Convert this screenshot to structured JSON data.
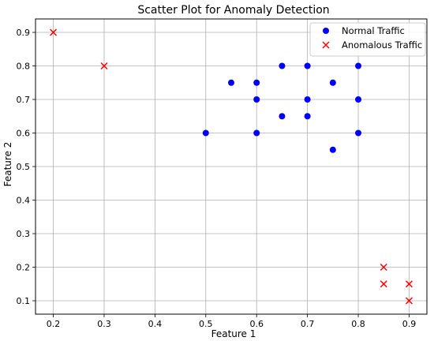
{
  "chart_data": {
    "type": "scatter",
    "title": "Scatter Plot for Anomaly Detection",
    "xlabel": "Feature 1",
    "ylabel": "Feature 2",
    "xlim": [
      0.165,
      0.935
    ],
    "ylim": [
      0.06,
      0.94
    ],
    "xticks": [
      "0.2",
      "0.3",
      "0.4",
      "0.5",
      "0.6",
      "0.7",
      "0.8",
      "0.9"
    ],
    "yticks": [
      "0.1",
      "0.2",
      "0.3",
      "0.4",
      "0.5",
      "0.6",
      "0.7",
      "0.8",
      "0.9"
    ],
    "grid": true,
    "legend_position": "top-right",
    "series": [
      {
        "name": "Normal Traffic",
        "marker": "circle",
        "color": "#0000ff",
        "x": [
          0.5,
          0.55,
          0.6,
          0.6,
          0.6,
          0.65,
          0.65,
          0.7,
          0.7,
          0.7,
          0.75,
          0.75,
          0.8,
          0.8,
          0.8
        ],
        "y": [
          0.6,
          0.75,
          0.6,
          0.7,
          0.75,
          0.65,
          0.8,
          0.65,
          0.7,
          0.8,
          0.55,
          0.75,
          0.6,
          0.7,
          0.8
        ]
      },
      {
        "name": "Anomalous Traffic",
        "marker": "x",
        "color": "#ff0000",
        "x": [
          0.2,
          0.3,
          0.85,
          0.85,
          0.9,
          0.9
        ],
        "y": [
          0.9,
          0.8,
          0.2,
          0.15,
          0.15,
          0.1
        ]
      }
    ]
  }
}
